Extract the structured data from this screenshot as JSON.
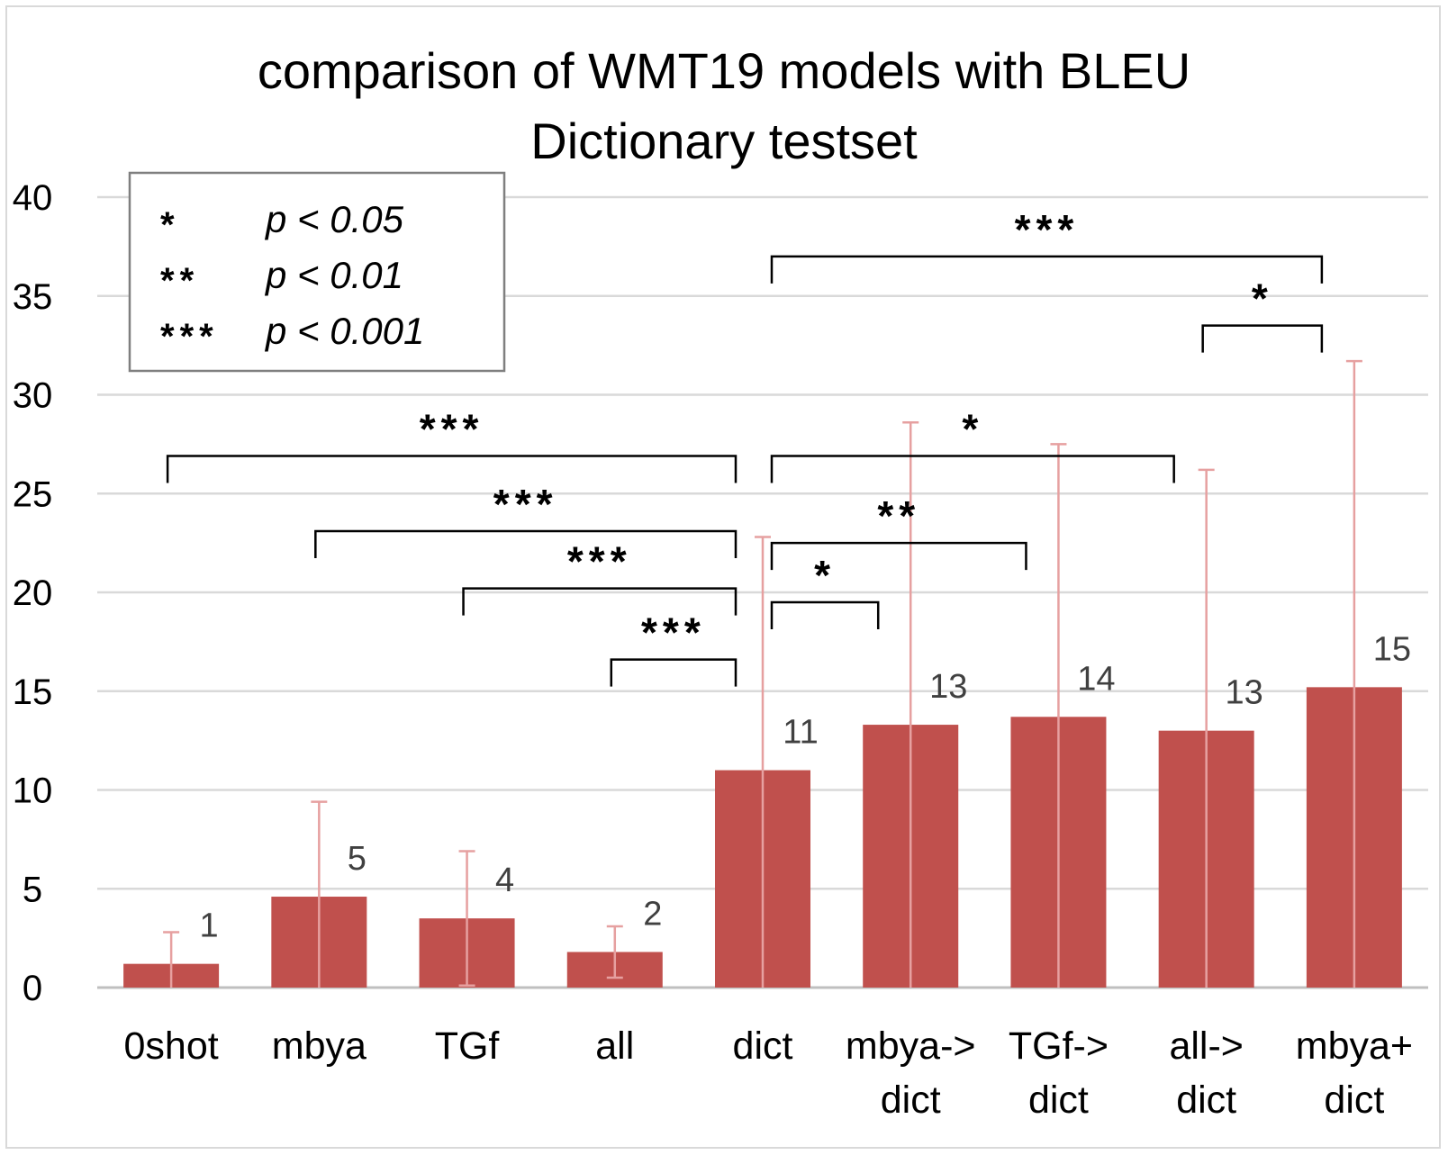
{
  "chart_data": {
    "type": "bar",
    "title": [
      "comparison of WMT19 models with BLEU",
      "Dictionary testset"
    ],
    "categories": [
      [
        "0shot"
      ],
      [
        "mbya"
      ],
      [
        "TGf"
      ],
      [
        "all"
      ],
      [
        "dict"
      ],
      [
        "mbya->",
        "dict"
      ],
      [
        "TGf->",
        "dict"
      ],
      [
        "all->",
        "dict"
      ],
      [
        "mbya+",
        "dict"
      ]
    ],
    "values": [
      1.2,
      4.6,
      3.5,
      1.8,
      11.0,
      13.3,
      13.7,
      13.0,
      15.2
    ],
    "data_labels": [
      "1",
      "5",
      "4",
      "2",
      "11",
      "13",
      "14",
      "13",
      "15"
    ],
    "error_bars": [
      {
        "low": 0.0,
        "high": 2.8
      },
      {
        "low": 0.0,
        "high": 9.4
      },
      {
        "low": 0.1,
        "high": 6.9
      },
      {
        "low": 0.5,
        "high": 3.1
      },
      {
        "low": 0.0,
        "high": 22.8
      },
      {
        "low": 0.0,
        "high": 28.6
      },
      {
        "low": 0.0,
        "high": 27.5
      },
      {
        "low": 0.0,
        "high": 26.2
      },
      {
        "low": 0.0,
        "high": 31.7
      }
    ],
    "ylim": [
      0,
      40
    ],
    "yticks": [
      "0",
      "5",
      "10",
      "15",
      "20",
      "25",
      "30",
      "35",
      "40"
    ],
    "ytick_values": [
      0,
      5,
      10,
      15,
      20,
      25,
      30,
      35,
      40
    ],
    "grid": true,
    "bar_color": "#c0504d",
    "error_color": "#e6a0a0",
    "significance": [
      {
        "from": 0,
        "to": 4,
        "level": 26.9,
        "label": "***"
      },
      {
        "from": 1,
        "to": 4,
        "level": 23.1,
        "label": "***"
      },
      {
        "from": 2,
        "to": 4,
        "level": 20.2,
        "label": "***"
      },
      {
        "from": 3,
        "to": 4,
        "level": 16.6,
        "label": "***"
      },
      {
        "from": 4,
        "to": 5,
        "level": 19.5,
        "label": "*"
      },
      {
        "from": 4,
        "to": 6,
        "level": 22.5,
        "label": "**"
      },
      {
        "from": 4,
        "to": 7,
        "level": 26.9,
        "label": "*"
      },
      {
        "from": 7,
        "to": 8,
        "level": 33.5,
        "label": "*"
      },
      {
        "from": 4,
        "to": 8,
        "level": 37.0,
        "label": "***"
      }
    ],
    "legend": {
      "position": "top-left",
      "entries": [
        {
          "symbol": "*",
          "text": "p < 0.05"
        },
        {
          "symbol": "**",
          "text": "p < 0.01"
        },
        {
          "symbol": "***",
          "text": "p < 0.001"
        }
      ]
    }
  }
}
